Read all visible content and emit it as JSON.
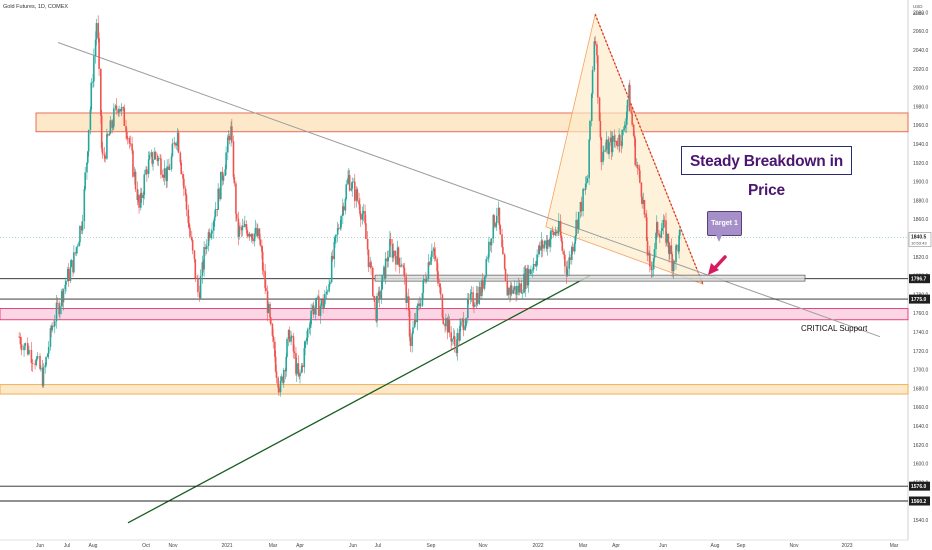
{
  "title": "Gold Futures, 1D, COMEX",
  "price_scale_header": [
    "USD",
    "actos"
  ],
  "annotations": {
    "headline": "Steady Breakdown in Price",
    "target": "Target 1",
    "critical": "CRITICAL Support"
  },
  "colors": {
    "up": "#26a69a",
    "down": "#ef5350",
    "resistance_zone_fill": "#fde9c9",
    "resistance_zone_border": "#e74c3c",
    "critical_zone_fill": "#fbd7e6",
    "critical_zone_border": "#e91e63",
    "lower_zone_fill": "#fde9c9",
    "lower_zone_border": "#f0a030",
    "trendline_support": "#1b5e20",
    "trendline_resistance": "#9e9e9e",
    "triangle_fill": "#fdebc8",
    "triangle_border": "#f4a261",
    "dashed_line": "#d32f2f",
    "callout": "#a590c9",
    "arrow": "#d81b60"
  },
  "chart_data": {
    "type": "candlestick",
    "instrument": "Gold Futures, 1D, COMEX",
    "y_ticks": [
      1540.0,
      1560.0,
      1580.0,
      1600.0,
      1620.0,
      1640.0,
      1660.0,
      1680.0,
      1700.0,
      1720.0,
      1740.0,
      1760.0,
      1780.0,
      1800.0,
      1820.0,
      1840.0,
      1860.0,
      1880.0,
      1900.0,
      1920.0,
      1940.0,
      1960.0,
      1980.0,
      2000.0,
      2020.0,
      2040.0,
      2060.0,
      2080.0
    ],
    "x_ticks": [
      "Jun",
      "Jul",
      "Aug",
      "Oct",
      "Nov",
      "2021",
      "Mar",
      "Apr",
      "Jun",
      "Jul",
      "Sep",
      "Nov",
      "2022",
      "Mar",
      "Apr",
      "Jun",
      "Aug",
      "Sep",
      "Nov",
      "2023",
      "Mar"
    ],
    "y_range": [
      1530,
      2100
    ],
    "current_price": "1840.5",
    "current_time": "10:53:43",
    "level_labels": [
      "1796.7",
      "1775.0",
      "1576.0",
      "1560.2"
    ],
    "levels": [
      1796.7,
      1775.0,
      1576.0,
      1560.2
    ],
    "zones": [
      {
        "name": "resistance",
        "low": 1953,
        "high": 1973
      },
      {
        "name": "critical support",
        "low": 1753,
        "high": 1765
      },
      {
        "name": "lower support",
        "low": 1674,
        "high": 1684
      }
    ],
    "price_path": [
      [
        "2020-05-15",
        1735
      ],
      [
        "2020-05-28",
        1712
      ],
      [
        "2020-06-05",
        1690
      ],
      [
        "2020-06-15",
        1745
      ],
      [
        "2020-06-30",
        1790
      ],
      [
        "2020-07-10",
        1815
      ],
      [
        "2020-07-20",
        1860
      ],
      [
        "2020-07-28",
        1960
      ],
      [
        "2020-08-06",
        2075
      ],
      [
        "2020-08-12",
        1920
      ],
      [
        "2020-08-20",
        1950
      ],
      [
        "2020-08-31",
        1985
      ],
      [
        "2020-09-10",
        1955
      ],
      [
        "2020-09-24",
        1870
      ],
      [
        "2020-10-02",
        1915
      ],
      [
        "2020-10-12",
        1930
      ],
      [
        "2020-10-26",
        1905
      ],
      [
        "2020-11-06",
        1955
      ],
      [
        "2020-11-16",
        1875
      ],
      [
        "2020-11-30",
        1780
      ],
      [
        "2020-12-10",
        1840
      ],
      [
        "2020-12-22",
        1880
      ],
      [
        "2021-01-06",
        1958
      ],
      [
        "2021-01-14",
        1845
      ],
      [
        "2021-01-28",
        1850
      ],
      [
        "2021-02-10",
        1840
      ],
      [
        "2021-02-26",
        1730
      ],
      [
        "2021-03-08",
        1678
      ],
      [
        "2021-03-20",
        1740
      ],
      [
        "2021-03-31",
        1685
      ],
      [
        "2021-04-15",
        1765
      ],
      [
        "2021-04-30",
        1770
      ],
      [
        "2021-05-14",
        1840
      ],
      [
        "2021-05-28",
        1905
      ],
      [
        "2021-06-04",
        1890
      ],
      [
        "2021-06-14",
        1865
      ],
      [
        "2021-06-29",
        1760
      ],
      [
        "2021-07-15",
        1830
      ],
      [
        "2021-07-30",
        1815
      ],
      [
        "2021-08-09",
        1730
      ],
      [
        "2021-08-24",
        1790
      ],
      [
        "2021-09-03",
        1835
      ],
      [
        "2021-09-15",
        1760
      ],
      [
        "2021-09-29",
        1725
      ],
      [
        "2021-10-15",
        1770
      ],
      [
        "2021-10-29",
        1785
      ],
      [
        "2021-11-10",
        1850
      ],
      [
        "2021-11-16",
        1870
      ],
      [
        "2021-11-26",
        1785
      ],
      [
        "2021-12-10",
        1785
      ],
      [
        "2021-12-20",
        1800
      ],
      [
        "2022-01-05",
        1830
      ],
      [
        "2022-01-25",
        1850
      ],
      [
        "2022-02-04",
        1805
      ],
      [
        "2022-02-15",
        1855
      ],
      [
        "2022-02-28",
        1905
      ],
      [
        "2022-03-08",
        2070
      ],
      [
        "2022-03-15",
        1930
      ],
      [
        "2022-03-28",
        1940
      ],
      [
        "2022-04-11",
        1950
      ],
      [
        "2022-04-18",
        1995
      ],
      [
        "2022-04-28",
        1920
      ],
      [
        "2022-05-06",
        1885
      ],
      [
        "2022-05-16",
        1800
      ],
      [
        "2022-05-25",
        1850
      ],
      [
        "2022-06-03",
        1850
      ],
      [
        "2022-06-14",
        1815
      ],
      [
        "2022-06-24",
        1840
      ]
    ]
  }
}
